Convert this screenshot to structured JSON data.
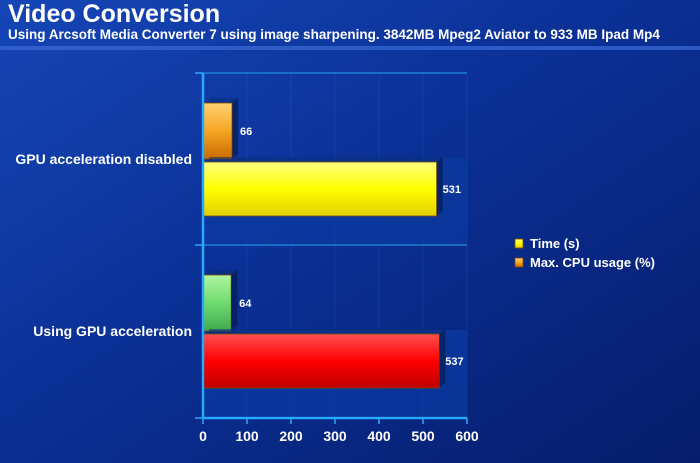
{
  "title": "Video Conversion",
  "subtitle": "Using Arcsoft Media Converter 7 using image sharpening. 3842MB Mpeg2 Aviator  to 933 MB Ipad Mp4",
  "colors": {
    "background": "#0b2a86",
    "time_bar_group1": "#ffff00",
    "cpu_bar_group1": "#f5a623",
    "time_bar_group2": "#ff0000",
    "cpu_bar_group2": "#6fdc6f",
    "grid": "#1f8fe0",
    "text": "#ffffff"
  },
  "chart_data": {
    "type": "bar",
    "orientation": "horizontal",
    "categories": [
      "GPU acceleration disabled",
      "Using GPU acceleration"
    ],
    "series": [
      {
        "name": "Max. CPU usage (%)",
        "values": [
          66,
          64
        ]
      },
      {
        "name": "Time (s)",
        "values": [
          531,
          537
        ]
      }
    ],
    "data_labels": [
      [
        "66",
        "64"
      ],
      [
        "531",
        "537"
      ]
    ],
    "xlim": [
      0,
      600
    ],
    "xticks": [
      0,
      100,
      200,
      300,
      400,
      500,
      600
    ],
    "xtick_labels": [
      "0",
      "100",
      "200",
      "300",
      "400",
      "500",
      "600"
    ],
    "legend": {
      "position": "right",
      "items": [
        {
          "label": "Time (s)",
          "color": "#ffff00"
        },
        {
          "label": "Max. CPU usage (%)",
          "color": "#f5a623"
        }
      ]
    },
    "grid": true
  }
}
